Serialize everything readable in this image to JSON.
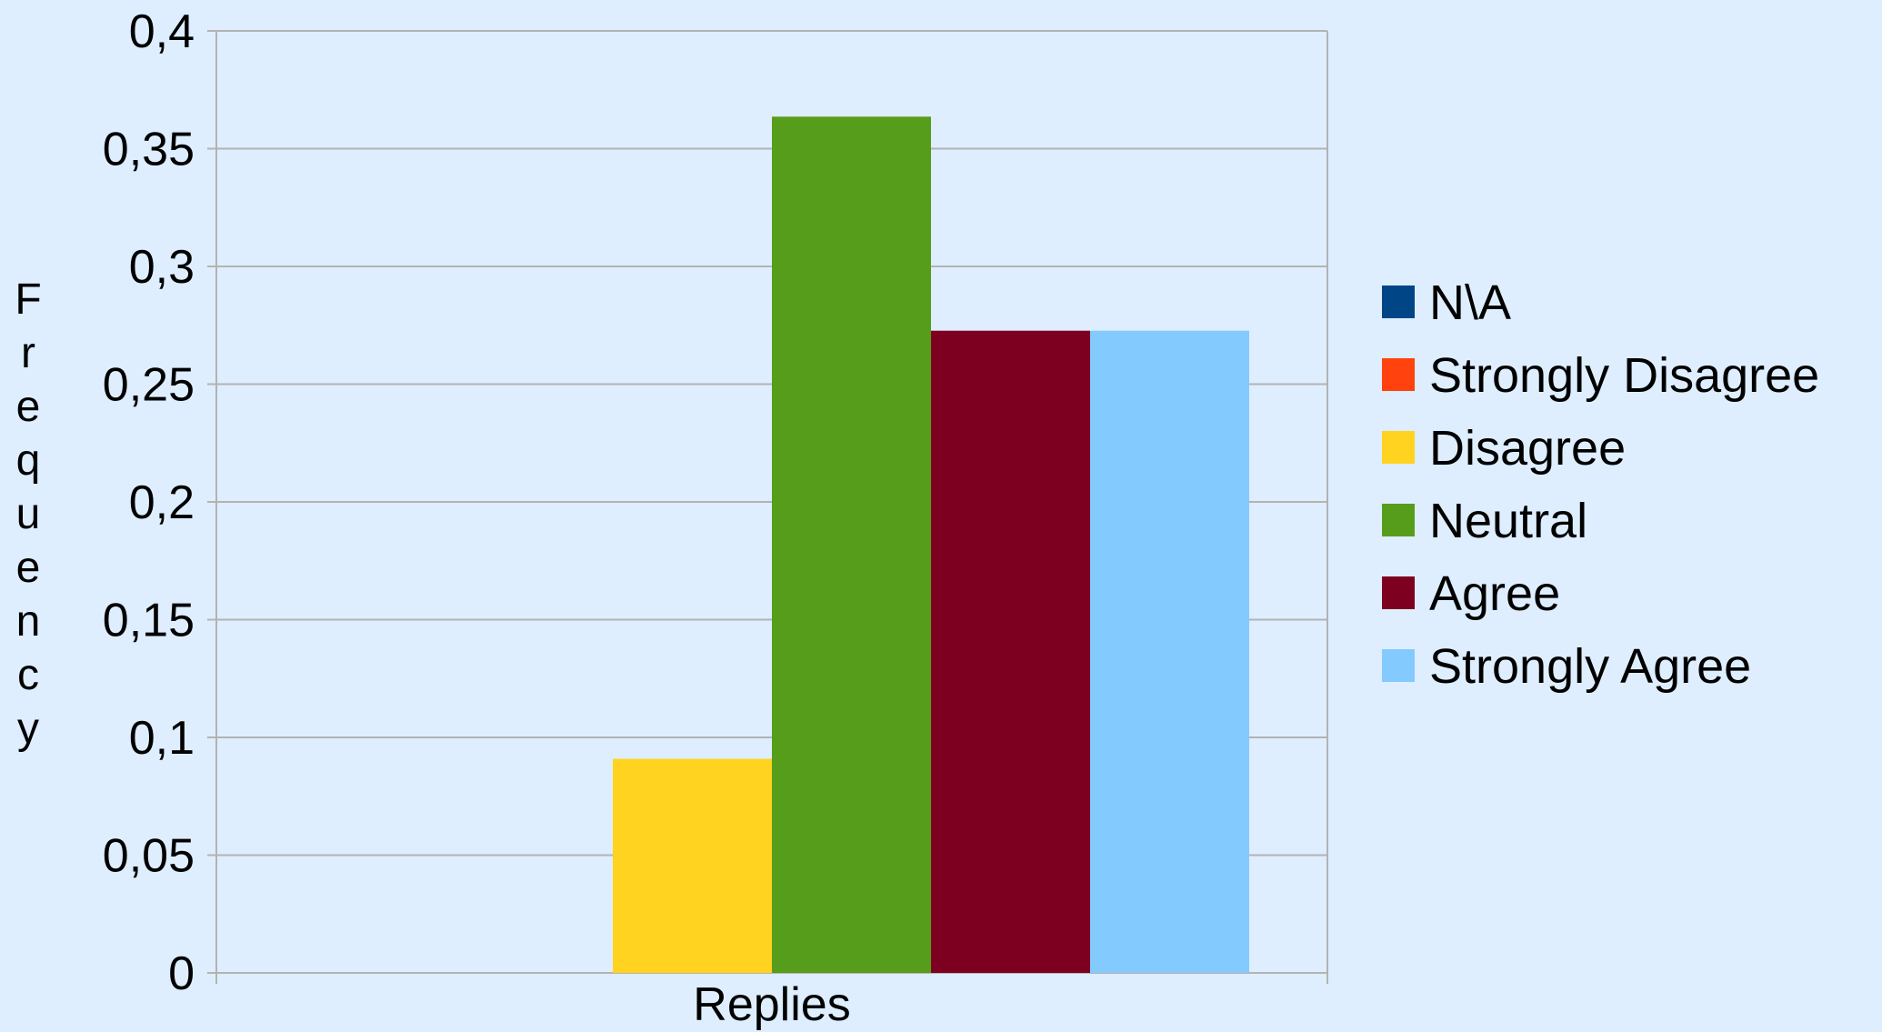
{
  "chart_data": {
    "type": "bar",
    "categories": [
      "Replies"
    ],
    "series": [
      {
        "name": "N\\A",
        "values": [
          0
        ],
        "color": "#004586"
      },
      {
        "name": "Strongly Disagree",
        "values": [
          0
        ],
        "color": "#ff420e"
      },
      {
        "name": "Disagree",
        "values": [
          0.0909
        ],
        "color": "#ffd320"
      },
      {
        "name": "Neutral",
        "values": [
          0.3636
        ],
        "color": "#579d1c"
      },
      {
        "name": "Agree",
        "values": [
          0.2727
        ],
        "color": "#7e0021"
      },
      {
        "name": "Strongly Agree",
        "values": [
          0.2727
        ],
        "color": "#83caff"
      }
    ],
    "ylabel": "Frequency",
    "xlabel": "",
    "ylim": [
      0,
      0.4
    ],
    "yticks": [
      0,
      0.05,
      0.1,
      0.15,
      0.2,
      0.25,
      0.3,
      0.35,
      0.4
    ],
    "ytick_labels": [
      "0",
      "0,05",
      "0,1",
      "0,15",
      "0,2",
      "0,25",
      "0,3",
      "0,35",
      "0,4"
    ],
    "grid": true,
    "legend": "right",
    "colors": {
      "background": "#deeefe",
      "grid": "#b3b3b3"
    }
  }
}
